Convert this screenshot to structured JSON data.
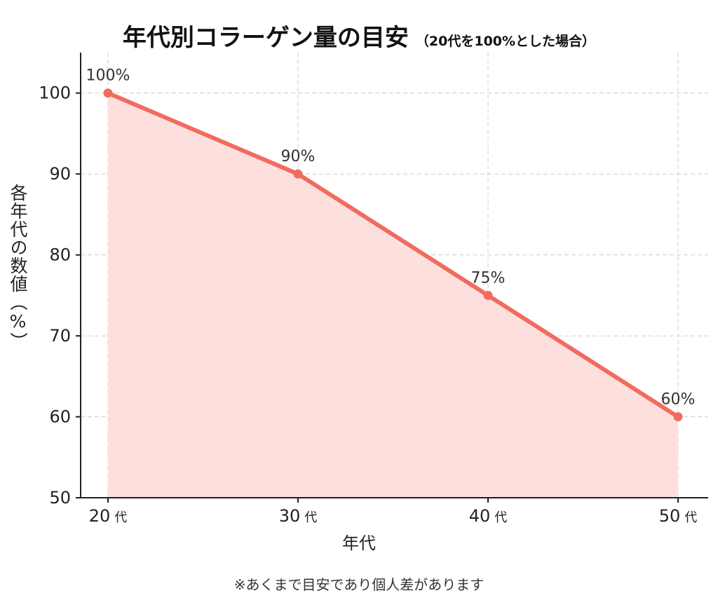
{
  "chart_data": {
    "type": "area",
    "title": "年代別コラーゲン量の目安",
    "subtitle": "（20代を100%とした場合）",
    "xlabel": "年代",
    "ylabel": "各年代の数値（%）",
    "categories": [
      "20",
      "30",
      "40",
      "50"
    ],
    "category_unit": "代",
    "values": [
      100,
      90,
      75,
      60
    ],
    "data_labels": [
      "100%",
      "90%",
      "75%",
      "60%"
    ],
    "ylim": [
      50,
      105
    ],
    "yticks": [
      50,
      60,
      70,
      80,
      90,
      100
    ],
    "grid": true,
    "line_color": "#f26b5f",
    "fill_color": "#fde0de",
    "footnote": "※あくまで目安であり個人差があります"
  }
}
